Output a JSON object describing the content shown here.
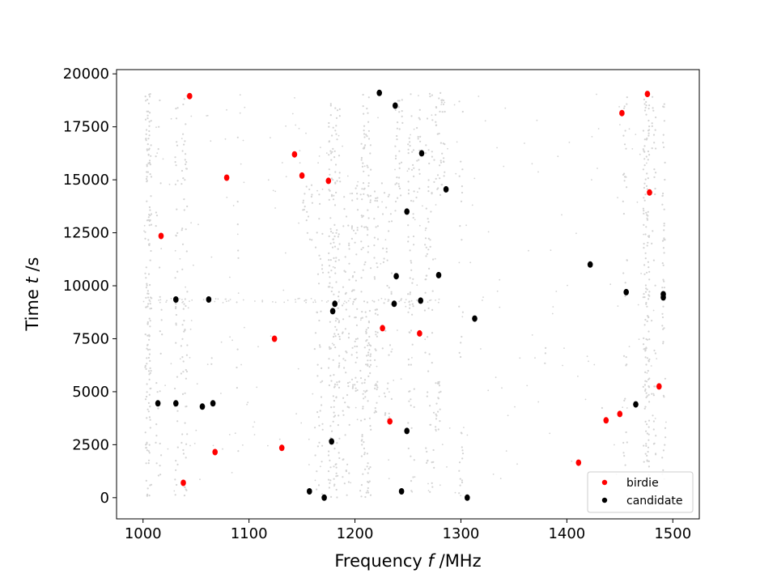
{
  "chart_data": {
    "type": "scatter",
    "title": "",
    "xlabel_prefix": "Frequency ",
    "xlabel_var": "f",
    "xlabel_unit": " /MHz",
    "ylabel_prefix": "Time ",
    "ylabel_var": "t",
    "ylabel_unit": " /s",
    "xlim": [
      975,
      1525
    ],
    "ylim": [
      -1000,
      20200
    ],
    "xticks": [
      1000,
      1100,
      1200,
      1300,
      1400,
      1500
    ],
    "yticks": [
      0,
      2500,
      5000,
      7500,
      10000,
      12500,
      15000,
      17500,
      20000
    ],
    "grid": false,
    "legend_position": "lower-right",
    "background_color": "#d3d3d3",
    "background_description": "dense light-grey background detections forming vertical bands",
    "series": [
      {
        "name": "birdie",
        "color": "#ff0000",
        "points": [
          [
            1044,
            18950
          ],
          [
            1017,
            12350
          ],
          [
            1079,
            15100
          ],
          [
            1143,
            16200
          ],
          [
            1150,
            15200
          ],
          [
            1175,
            14950
          ],
          [
            1124,
            7500
          ],
          [
            1226,
            8000
          ],
          [
            1261,
            7750
          ],
          [
            1233,
            3600
          ],
          [
            1068,
            2150
          ],
          [
            1131,
            2350
          ],
          [
            1038,
            700
          ],
          [
            1411,
            1650
          ],
          [
            1437,
            3650
          ],
          [
            1450,
            3950
          ],
          [
            1452,
            18150
          ],
          [
            1476,
            19050
          ],
          [
            1478,
            14400
          ],
          [
            1487,
            5250
          ]
        ]
      },
      {
        "name": "candidate",
        "color": "#000000",
        "points": [
          [
            1223,
            19100
          ],
          [
            1238,
            18500
          ],
          [
            1263,
            16250
          ],
          [
            1286,
            14550
          ],
          [
            1249,
            13500
          ],
          [
            1031,
            9350
          ],
          [
            1062,
            9350
          ],
          [
            1181,
            9150
          ],
          [
            1179,
            8800
          ],
          [
            1239,
            10450
          ],
          [
            1237,
            9150
          ],
          [
            1262,
            9300
          ],
          [
            1279,
            10500
          ],
          [
            1313,
            8450
          ],
          [
            1014,
            4450
          ],
          [
            1031,
            4450
          ],
          [
            1056,
            4300
          ],
          [
            1066,
            4450
          ],
          [
            1178,
            2650
          ],
          [
            1249,
            3150
          ],
          [
            1157,
            300
          ],
          [
            1171,
            0
          ],
          [
            1244,
            300
          ],
          [
            1306,
            0
          ],
          [
            1422,
            11000
          ],
          [
            1456,
            9700
          ],
          [
            1465,
            4400
          ],
          [
            1491,
            9600
          ],
          [
            1491,
            9450
          ]
        ]
      }
    ]
  }
}
